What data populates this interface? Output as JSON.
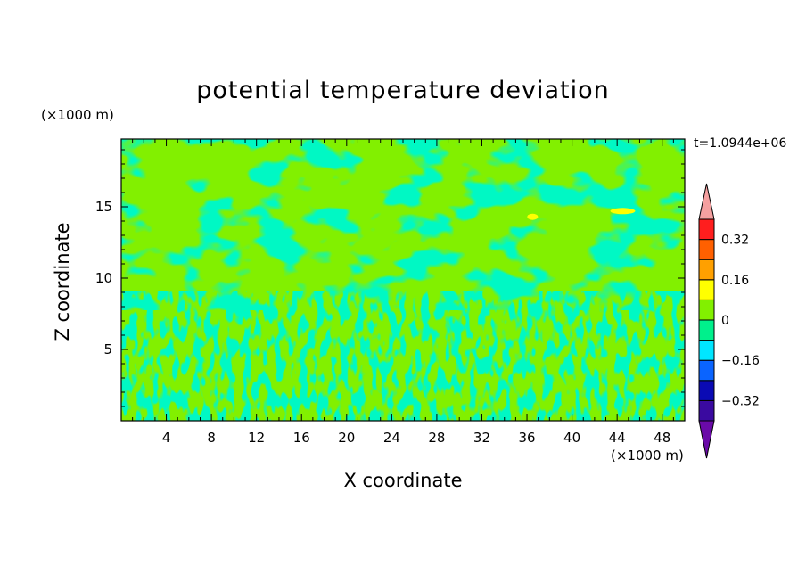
{
  "chart_data": {
    "type": "heatmap",
    "title": "potential temperature deviation",
    "xlabel": "X coordinate",
    "ylabel": "Z coordinate",
    "x_unit": "(×1000 m)",
    "y_unit": "(×1000 m)",
    "timestamp": "t=1.0944e+06",
    "xlim": [
      0,
      50
    ],
    "ylim": [
      0,
      19.75
    ],
    "x_ticks": [
      4,
      8,
      12,
      16,
      20,
      24,
      28,
      32,
      36,
      40,
      44,
      48
    ],
    "y_ticks": [
      5,
      10,
      15
    ],
    "colorbar": {
      "levels": [
        -0.4,
        -0.32,
        -0.24,
        -0.16,
        -0.08,
        0,
        0.08,
        0.16,
        0.24,
        0.32,
        0.4
      ],
      "tick_labels": [
        "0.32",
        "0.16",
        "0",
        "−0.16",
        "−0.32"
      ],
      "tick_values": [
        0.32,
        0.16,
        0,
        -0.16,
        -0.32
      ],
      "colors": [
        "#6a0aa8",
        "#3a0aa0",
        "#0a0ab4",
        "#0a64ff",
        "#00e6ff",
        "#00f08c",
        "#82f000",
        "#ffff00",
        "#ffa000",
        "#ff6000",
        "#ff1e1e",
        "#f5a0a0"
      ],
      "extend": "both"
    },
    "grid": false,
    "description_values": {
      "dominant_bands": [
        {
          "z_range": [
            0,
            8.5
          ],
          "pattern": "small-scale turbulent cells",
          "values": [
            -0.08,
            0.08
          ]
        },
        {
          "z_range": [
            8.5,
            19.75
          ],
          "pattern": "large layered structures",
          "values": [
            -0.08,
            0.08
          ]
        }
      ],
      "positive_extremes": [
        {
          "x": 44.5,
          "z": 14.7,
          "value": 0.16
        },
        {
          "x": 36.5,
          "z": 14.3,
          "value": 0.12
        }
      ]
    }
  }
}
